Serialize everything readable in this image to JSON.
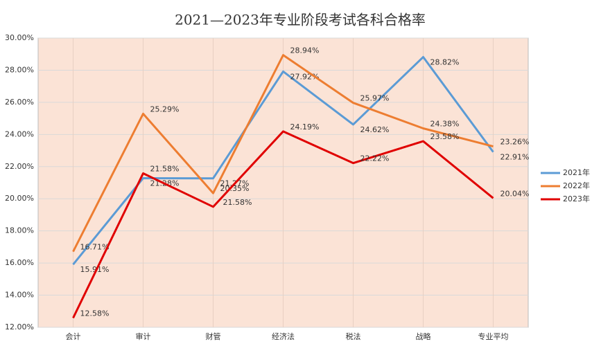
{
  "chart_data": {
    "type": "line",
    "title": "2021—2023年专业阶段考试各科合格率",
    "categories": [
      "会计",
      "审计",
      "财管",
      "经济法",
      "税法",
      "战略",
      "专业平均"
    ],
    "series": [
      {
        "name": "2021年",
        "color": "#5b9bd5",
        "values": [
          15.91,
          21.28,
          21.27,
          27.92,
          24.62,
          28.82,
          22.91
        ],
        "value_labels": [
          "15.91%",
          "21.28%",
          "21.27%",
          "27.92%",
          "24.62%",
          "28.82%",
          "22.91%"
        ]
      },
      {
        "name": "2022年",
        "color": "#ed7d31",
        "values": [
          16.71,
          25.29,
          20.35,
          28.94,
          25.97,
          24.38,
          23.26
        ],
        "value_labels": [
          "16.71%",
          "25.29%",
          "20.35%",
          "28.94%",
          "25.97%",
          "24.38%",
          "23.26%"
        ]
      },
      {
        "name": "2023年",
        "color": "#e00000",
        "values": [
          12.58,
          21.58,
          19.5,
          24.19,
          22.22,
          23.58,
          20.04
        ],
        "value_labels": [
          "12.58%",
          "21.58%",
          null,
          "24.19%",
          "22.22%",
          "23.58%",
          "20.04%"
        ]
      }
    ],
    "annotation": "21.58%",
    "ylim": [
      12,
      30
    ],
    "yticks": [
      {
        "value": 12,
        "label": "12.00%"
      },
      {
        "value": 14,
        "label": "14.00%"
      },
      {
        "value": 16,
        "label": "16.00%"
      },
      {
        "value": 18,
        "label": "18.00%"
      },
      {
        "value": 20,
        "label": "20.00%"
      },
      {
        "value": 22,
        "label": "22.00%"
      },
      {
        "value": 24,
        "label": "24.00%"
      },
      {
        "value": 26,
        "label": "26.00%"
      },
      {
        "value": 28,
        "label": "28.00%"
      },
      {
        "value": 30,
        "label": "30.00%"
      }
    ],
    "grid": true,
    "legend": "right",
    "plot_background": "#fbe3d6"
  }
}
